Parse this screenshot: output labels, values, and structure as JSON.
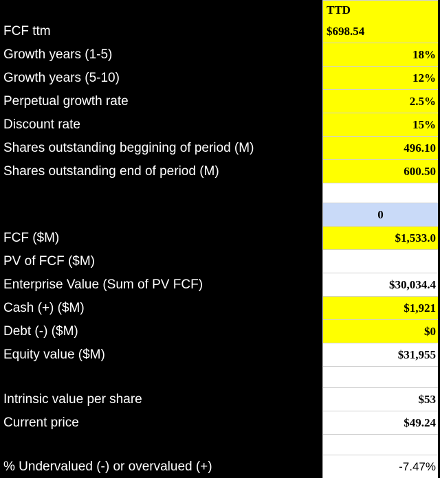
{
  "header": {
    "ticker": "TTD"
  },
  "inputs": [
    {
      "label": "FCF ttm",
      "value": "$698.54"
    },
    {
      "label": "Growth years (1-5)",
      "value": "18%"
    },
    {
      "label": "Growth years (5-10)",
      "value": "12%"
    },
    {
      "label": "Perpetual growth rate",
      "value": "2.5%"
    },
    {
      "label": "Discount rate",
      "value": "15%"
    },
    {
      "label": "Shares outstanding beggining of period (M)",
      "value": "496.10"
    },
    {
      "label": "Shares outstanding end of period (M)",
      "value": "600.50"
    }
  ],
  "period": {
    "value": "0"
  },
  "valuation": [
    {
      "label": "FCF ($M)",
      "value": "$1,533.0"
    },
    {
      "label": "PV of FCF ($M)",
      "value": ""
    },
    {
      "label": "Enterprise Value (Sum of PV FCF)",
      "value": "$30,034.4"
    },
    {
      "label": "Cash (+) ($M)",
      "value": "$1,921"
    },
    {
      "label": "Debt (-) ($M)",
      "value": "$0"
    },
    {
      "label": "Equity value ($M)",
      "value": "$31,955"
    }
  ],
  "per_share": [
    {
      "label": "Intrinsic value per share",
      "value": "$53"
    },
    {
      "label": "Current price",
      "value": "$49.24"
    }
  ],
  "result": {
    "label": "% Undervalued (-) or overvalued (+)",
    "value": "-7.47%"
  },
  "colors": {
    "input_cell": "#ffff00",
    "period_cell": "#c9daf8",
    "plain_cell": "#ffffff",
    "background": "#000000"
  }
}
